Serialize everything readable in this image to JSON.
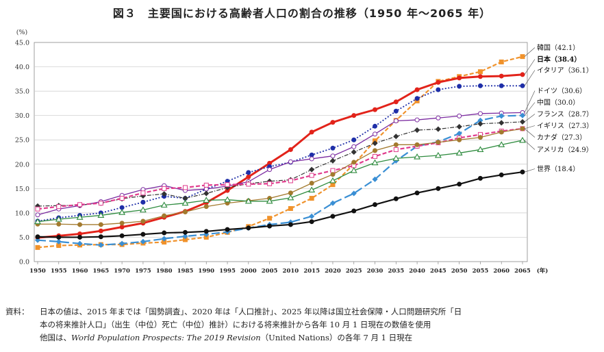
{
  "title": "図３　主要国における高齢者人口の割合の推移（1950 年～2065 年）",
  "chart_data": {
    "type": "line",
    "y_unit": "(%)",
    "x_unit": "(年)",
    "ylim": [
      0,
      45
    ],
    "yticks": [
      "0.0",
      "5.0",
      "10.0",
      "15.0",
      "20.0",
      "25.0",
      "30.0",
      "35.0",
      "40.0",
      "45.0"
    ],
    "x": [
      1950,
      1955,
      1960,
      1965,
      1970,
      1975,
      1980,
      1985,
      1990,
      1995,
      2000,
      2005,
      2010,
      2015,
      2020,
      2025,
      2030,
      2035,
      2040,
      2045,
      2050,
      2055,
      2060,
      2065
    ],
    "series": [
      {
        "name": "韓国",
        "end_label": "韓国（42.1）",
        "color": "#f0922b",
        "style": "dashed-square",
        "values": [
          2.9,
          3.3,
          3.4,
          3.5,
          3.5,
          3.8,
          4.0,
          4.5,
          5.0,
          6.0,
          7.2,
          8.9,
          10.9,
          13.0,
          15.8,
          20.0,
          24.8,
          29.0,
          33.0,
          37.0,
          38.0,
          39.0,
          41.0,
          42.1
        ]
      },
      {
        "name": "日本",
        "end_label": "日本（38.4）",
        "color": "#e2231a",
        "style": "solid-circle",
        "values": [
          4.9,
          5.3,
          5.7,
          6.3,
          7.1,
          7.9,
          9.1,
          10.3,
          12.1,
          14.6,
          17.4,
          20.2,
          23.0,
          26.6,
          28.6,
          30.0,
          31.2,
          32.8,
          35.3,
          36.8,
          37.7,
          38.0,
          38.1,
          38.4
        ]
      },
      {
        "name": "イタリア",
        "end_label": "イタリア（36.1）",
        "color": "#1f2fa8",
        "style": "dotted-circle",
        "values": [
          8.3,
          9.0,
          9.5,
          10.0,
          11.1,
          12.2,
          13.4,
          13.0,
          14.9,
          16.5,
          18.3,
          19.5,
          20.4,
          21.9,
          23.3,
          25.0,
          27.8,
          30.9,
          33.5,
          35.3,
          36.0,
          36.1,
          36.1,
          36.1
        ]
      },
      {
        "name": "ドイツ",
        "end_label": "ドイツ（30.6）",
        "color": "#7b2aa0",
        "style": "solid-circle-open",
        "values": [
          9.6,
          10.8,
          11.5,
          12.3,
          13.6,
          14.8,
          15.6,
          14.6,
          14.9,
          15.5,
          16.4,
          18.9,
          20.5,
          21.1,
          21.7,
          23.6,
          26.2,
          28.9,
          29.1,
          29.5,
          29.9,
          30.4,
          30.5,
          30.6
        ]
      },
      {
        "name": "中国",
        "end_label": "中国（30.0）",
        "color": "#3a8fd4",
        "style": "longdash-diamond",
        "values": [
          4.4,
          4.1,
          3.7,
          3.4,
          3.7,
          4.1,
          4.7,
          5.2,
          5.6,
          6.1,
          6.9,
          7.6,
          8.1,
          9.3,
          12.0,
          14.0,
          16.9,
          20.7,
          23.7,
          24.6,
          26.3,
          29.0,
          29.9,
          30.0
        ]
      },
      {
        "name": "フランス",
        "end_label": "フランス（28.7）",
        "color": "#333333",
        "style": "dashdot-diamond",
        "values": [
          11.4,
          11.5,
          11.6,
          12.0,
          12.9,
          13.5,
          13.9,
          13.0,
          14.0,
          15.2,
          16.0,
          16.5,
          16.8,
          18.9,
          20.7,
          22.5,
          24.3,
          25.7,
          27.0,
          27.2,
          27.7,
          28.3,
          28.5,
          28.7
        ]
      },
      {
        "name": "イギリス",
        "end_label": "イギリス（27.3）",
        "color": "#e03a8c",
        "style": "dashed-square-open",
        "values": [
          10.8,
          11.3,
          11.7,
          12.0,
          13.0,
          14.1,
          15.0,
          15.2,
          15.7,
          15.8,
          15.9,
          16.0,
          16.6,
          17.7,
          18.7,
          19.7,
          21.6,
          23.0,
          23.7,
          24.4,
          25.4,
          26.1,
          26.8,
          27.3
        ]
      },
      {
        "name": "カナダ",
        "end_label": "カナダ（27.3）",
        "color": "#a37a2e",
        "style": "solid-circle",
        "values": [
          7.7,
          7.7,
          7.6,
          7.6,
          7.9,
          8.3,
          9.4,
          10.2,
          11.3,
          12.0,
          12.5,
          13.0,
          14.1,
          16.1,
          17.9,
          20.4,
          22.8,
          24.0,
          24.0,
          24.5,
          25.0,
          25.5,
          26.6,
          27.3
        ]
      },
      {
        "name": "アメリカ",
        "end_label": "アメリカ（24.9）",
        "color": "#2e8b3e",
        "style": "solid-triangle-open",
        "values": [
          8.2,
          8.7,
          9.1,
          9.5,
          10.1,
          10.6,
          11.6,
          12.0,
          12.6,
          12.7,
          12.4,
          12.4,
          13.1,
          14.7,
          16.6,
          18.7,
          20.3,
          21.2,
          21.5,
          21.8,
          22.3,
          23.0,
          24.0,
          24.9
        ]
      },
      {
        "name": "世界",
        "end_label": "世界（18.4）",
        "color": "#111111",
        "style": "solid-circle",
        "values": [
          5.1,
          5.0,
          5.0,
          5.1,
          5.3,
          5.6,
          5.9,
          6.0,
          6.2,
          6.6,
          6.9,
          7.3,
          7.6,
          8.2,
          9.3,
          10.4,
          11.7,
          12.9,
          14.1,
          15.0,
          15.9,
          17.1,
          17.8,
          18.4
        ]
      }
    ]
  },
  "note": {
    "prefix": "資料：",
    "line1": "日本の値は、2015 年までは「国勢調査」、2020 年は「人口推計」、2025 年以降は国立社会保障・人口問題研究所「日",
    "line2": "本の将来推計人口」（出生（中位）死亡（中位）推計）における将来推計から各年 10 月 1 日現在の数値を使用",
    "line3_pre": "他国は、",
    "line3_italic": "World Population Prospects: The 2019 Revision",
    "line3_post": "（United Nations）の各年 7 月 1 日現在"
  }
}
